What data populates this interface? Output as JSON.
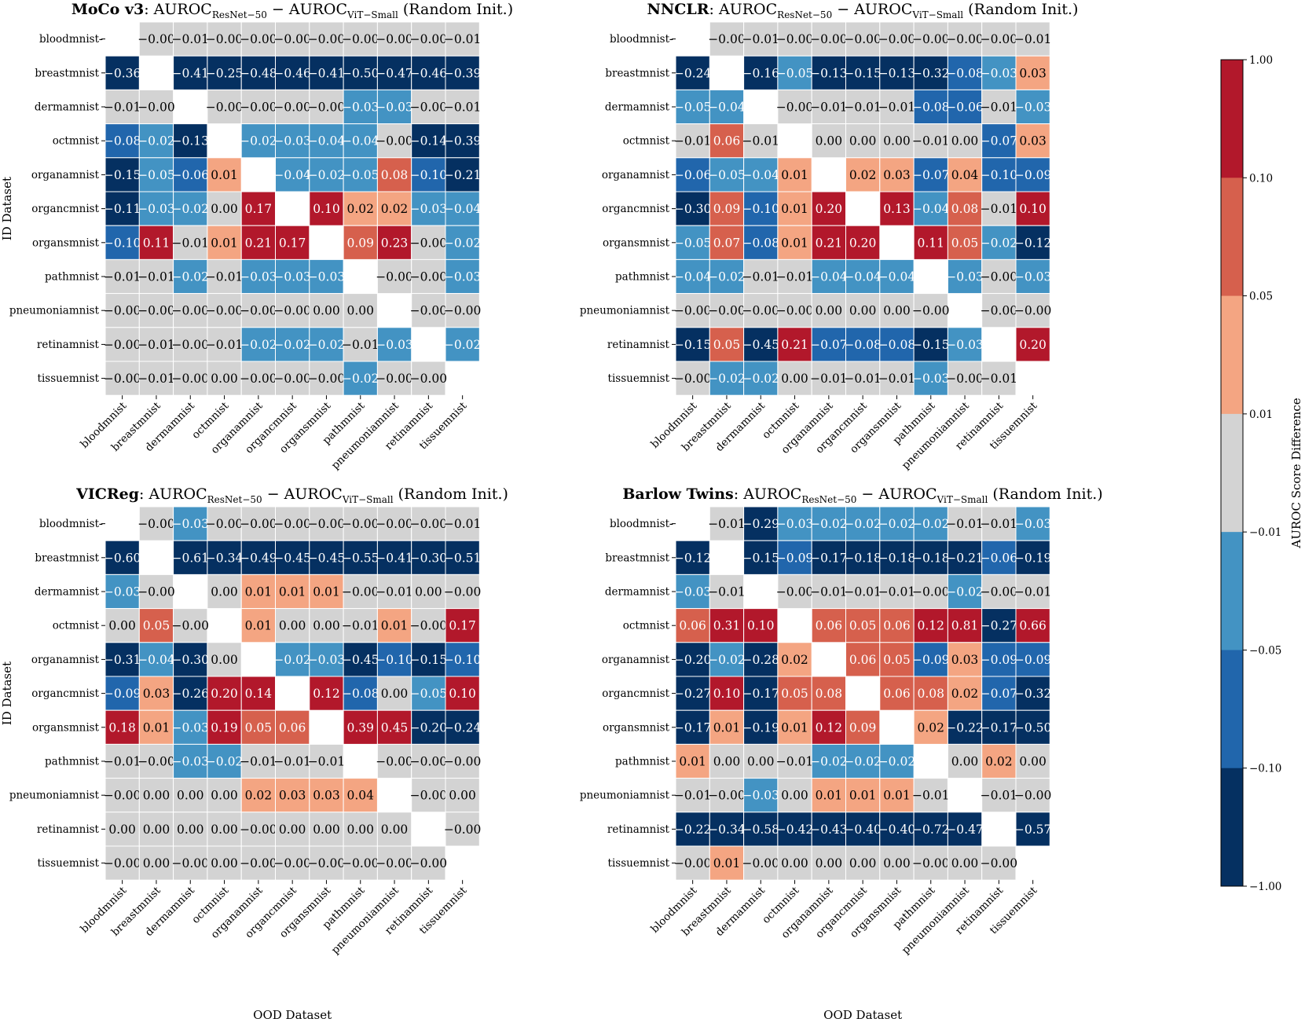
{
  "chart_data": {
    "type": "heatmap",
    "figure_title_prefix_sep": ": ",
    "colorbar": {
      "label": "AUROC Score Difference",
      "ticks": [
        "1.00",
        "0.10",
        "0.05",
        "0.01",
        "−0.01",
        "−0.05",
        "−0.10",
        "−1.00"
      ],
      "boundaries": [
        1.0,
        0.1,
        0.05,
        0.01,
        -0.01,
        -0.05,
        -0.1,
        -1.0
      ],
      "colors": [
        "#b2182b",
        "#d6604d",
        "#f4a582",
        "#d3d3d3",
        "#4393c3",
        "#2166ac",
        "#053061"
      ]
    },
    "x_categories": [
      "bloodmnist",
      "breastmnist",
      "dermamnist",
      "octmnist",
      "organamnist",
      "organcmnist",
      "organsmnist",
      "pathmnist",
      "pneumoniamnist",
      "retinamnist",
      "tissuemnist"
    ],
    "y_categories": [
      "bloodmnist",
      "breastmnist",
      "dermamnist",
      "octmnist",
      "organamnist",
      "organcmnist",
      "organsmnist",
      "pathmnist",
      "pneumoniamnist",
      "retinamnist",
      "tissuemnist"
    ],
    "diagonal_marker": "-",
    "panels": [
      {
        "method": "MoCo v3",
        "title_main": "AUROC",
        "title_sub1": "ResNet−50",
        "title_minus": " − ",
        "title_main2": "AUROC",
        "title_sub2": "ViT−Small",
        "title_suffix": " (Random Init.)",
        "xlabel": "",
        "ylabel": "ID Dataset",
        "values": [
          [
            null,
            "-0.00",
            "-0.01",
            "-0.00",
            "-0.00",
            "-0.00",
            "-0.00",
            "-0.00",
            "-0.00",
            "-0.00",
            "-0.01"
          ],
          [
            "-0.36",
            null,
            "-0.41",
            "-0.25",
            "-0.48",
            "-0.46",
            "-0.41",
            "-0.50",
            "-0.47",
            "-0.46",
            "-0.39"
          ],
          [
            "-0.01",
            "-0.00",
            null,
            "-0.00",
            "-0.00",
            "-0.00",
            "-0.00",
            "-0.03",
            "-0.03",
            "-0.00",
            "-0.01"
          ],
          [
            "-0.08",
            "-0.02",
            "-0.13",
            null,
            "-0.02",
            "-0.03",
            "-0.04",
            "-0.04",
            "-0.00",
            "-0.14",
            "-0.39"
          ],
          [
            "-0.15",
            "-0.05",
            "-0.06",
            "0.01",
            null,
            "-0.04",
            "-0.02",
            "-0.05",
            "0.08",
            "-0.10",
            "-0.21"
          ],
          [
            "-0.11",
            "-0.03",
            "-0.02",
            "0.00",
            "0.17",
            null,
            "0.10",
            "0.02",
            "0.02",
            "-0.03",
            "-0.04"
          ],
          [
            "-0.10",
            "0.11",
            "-0.01",
            "0.01",
            "0.21",
            "0.17",
            null,
            "0.09",
            "0.23",
            "-0.00",
            "-0.02"
          ],
          [
            "-0.01",
            "-0.01",
            "-0.02",
            "-0.01",
            "-0.03",
            "-0.03",
            "-0.03",
            null,
            "-0.00",
            "-0.00",
            "-0.03"
          ],
          [
            "-0.00",
            "-0.00",
            "-0.00",
            "-0.00",
            "-0.00",
            "-0.00",
            "0.00",
            "0.00",
            null,
            "-0.00",
            "-0.00"
          ],
          [
            "-0.00",
            "-0.01",
            "-0.00",
            "-0.01",
            "-0.02",
            "-0.02",
            "-0.02",
            "-0.01",
            "-0.03",
            null,
            "-0.02"
          ],
          [
            "-0.00",
            "-0.01",
            "-0.00",
            "0.00",
            "-0.00",
            "-0.00",
            "-0.00",
            "-0.02",
            "-0.00",
            "-0.00",
            null
          ]
        ]
      },
      {
        "method": "NNCLR",
        "title_main": "AUROC",
        "title_sub1": "ResNet−50",
        "title_minus": " − ",
        "title_main2": "AUROC",
        "title_sub2": "ViT−Small",
        "title_suffix": " (Random Init.)",
        "xlabel": "",
        "ylabel": "",
        "values": [
          [
            null,
            "-0.00",
            "-0.01",
            "-0.00",
            "-0.00",
            "-0.00",
            "-0.00",
            "-0.00",
            "-0.00",
            "-0.00",
            "-0.01"
          ],
          [
            "-0.24",
            null,
            "-0.16",
            "-0.05",
            "-0.13",
            "-0.15",
            "-0.13",
            "-0.32",
            "-0.08",
            "-0.03",
            "0.03"
          ],
          [
            "-0.05",
            "-0.04",
            null,
            "-0.00",
            "-0.01",
            "-0.01",
            "-0.01",
            "-0.08",
            "-0.06",
            "-0.01",
            "-0.03"
          ],
          [
            "-0.01",
            "0.06",
            "-0.01",
            null,
            "0.00",
            "0.00",
            "0.00",
            "-0.01",
            "0.00",
            "-0.07",
            "0.03"
          ],
          [
            "-0.06",
            "-0.05",
            "-0.04",
            "0.01",
            null,
            "0.02",
            "0.03",
            "-0.07",
            "0.04",
            "-0.10",
            "-0.09"
          ],
          [
            "-0.30",
            "0.09",
            "-0.10",
            "0.01",
            "0.20",
            null,
            "0.13",
            "-0.04",
            "0.08",
            "-0.01",
            "0.10"
          ],
          [
            "-0.05",
            "0.07",
            "-0.08",
            "0.01",
            "0.21",
            "0.20",
            null,
            "0.11",
            "0.05",
            "-0.02",
            "-0.12"
          ],
          [
            "-0.04",
            "-0.02",
            "-0.01",
            "-0.01",
            "-0.04",
            "-0.04",
            "-0.04",
            null,
            "-0.03",
            "-0.00",
            "-0.03"
          ],
          [
            "-0.00",
            "-0.00",
            "-0.00",
            "-0.00",
            "0.00",
            "0.00",
            "0.00",
            "-0.00",
            null,
            "-0.00",
            "-0.00"
          ],
          [
            "-0.15",
            "0.05",
            "-0.45",
            "0.21",
            "-0.07",
            "-0.08",
            "-0.08",
            "-0.15",
            "-0.03",
            null,
            "0.20"
          ],
          [
            "-0.00",
            "-0.02",
            "-0.02",
            "0.00",
            "-0.01",
            "-0.01",
            "-0.01",
            "-0.03",
            "-0.00",
            "-0.01",
            null
          ]
        ]
      },
      {
        "method": "VICReg",
        "title_main": "AUROC",
        "title_sub1": "ResNet−50",
        "title_minus": " − ",
        "title_main2": "AUROC",
        "title_sub2": "ViT−Small",
        "title_suffix": " (Random Init.)",
        "xlabel": "OOD Dataset",
        "ylabel": "ID Dataset",
        "values": [
          [
            null,
            "-0.00",
            "-0.03",
            "-0.00",
            "-0.00",
            "-0.00",
            "-0.00",
            "-0.00",
            "-0.00",
            "-0.00",
            "-0.01"
          ],
          [
            "-0.60",
            null,
            "-0.61",
            "-0.34",
            "-0.49",
            "-0.45",
            "-0.45",
            "-0.55",
            "-0.41",
            "-0.30",
            "-0.51"
          ],
          [
            "-0.03",
            "-0.00",
            null,
            "0.00",
            "0.01",
            "0.01",
            "0.01",
            "-0.00",
            "-0.01",
            "0.00",
            "-0.00"
          ],
          [
            "0.00",
            "0.05",
            "-0.00",
            null,
            "0.01",
            "0.00",
            "0.00",
            "-0.01",
            "0.01",
            "-0.00",
            "0.17"
          ],
          [
            "-0.31",
            "-0.04",
            "-0.30",
            "0.00",
            null,
            "-0.02",
            "-0.03",
            "-0.45",
            "-0.10",
            "-0.15",
            "-0.10"
          ],
          [
            "-0.09",
            "0.03",
            "-0.26",
            "0.20",
            "0.14",
            null,
            "0.12",
            "-0.08",
            "0.00",
            "-0.05",
            "0.10"
          ],
          [
            "0.18",
            "0.01",
            "-0.03",
            "0.19",
            "0.05",
            "0.06",
            null,
            "0.39",
            "0.45",
            "-0.20",
            "-0.24"
          ],
          [
            "-0.01",
            "-0.00",
            "-0.03",
            "-0.02",
            "-0.01",
            "-0.01",
            "-0.01",
            null,
            "-0.00",
            "-0.00",
            "-0.00"
          ],
          [
            "-0.00",
            "0.00",
            "0.00",
            "0.00",
            "0.02",
            "0.03",
            "0.03",
            "0.04",
            null,
            "-0.00",
            "0.00"
          ],
          [
            "0.00",
            "0.00",
            "0.00",
            "0.00",
            "-0.00",
            "0.00",
            "0.00",
            "0.00",
            "0.00",
            null,
            "-0.00"
          ],
          [
            "-0.00",
            "0.00",
            "-0.00",
            "0.00",
            "-0.00",
            "-0.00",
            "-0.00",
            "-0.00",
            "-0.00",
            "-0.00",
            null
          ]
        ]
      },
      {
        "method": "Barlow Twins",
        "title_main": "AUROC",
        "title_sub1": "ResNet−50",
        "title_minus": " − ",
        "title_main2": "AUROC",
        "title_sub2": "ViT−Small",
        "title_suffix": " (Random Init.)",
        "xlabel": "OOD Dataset",
        "ylabel": "",
        "values": [
          [
            null,
            "-0.01",
            "-0.29",
            "-0.03",
            "-0.02",
            "-0.02",
            "-0.02",
            "-0.02",
            "-0.01",
            "-0.01",
            "-0.03"
          ],
          [
            "-0.12",
            null,
            "-0.15",
            "-0.09",
            "-0.17",
            "-0.18",
            "-0.18",
            "-0.18",
            "-0.21",
            "-0.06",
            "-0.19"
          ],
          [
            "-0.03",
            "-0.01",
            null,
            "-0.00",
            "-0.01",
            "-0.01",
            "-0.01",
            "-0.00",
            "-0.02",
            "-0.00",
            "-0.01"
          ],
          [
            "0.06",
            "0.31",
            "0.10",
            null,
            "0.06",
            "0.05",
            "0.06",
            "0.12",
            "0.81",
            "-0.27",
            "0.66"
          ],
          [
            "-0.20",
            "-0.02",
            "-0.28",
            "0.02",
            null,
            "0.06",
            "0.05",
            "-0.09",
            "0.03",
            "-0.09",
            "-0.09"
          ],
          [
            "-0.27",
            "0.10",
            "-0.17",
            "0.05",
            "0.08",
            null,
            "0.06",
            "0.08",
            "0.02",
            "-0.07",
            "-0.32"
          ],
          [
            "-0.17",
            "0.01",
            "-0.19",
            "0.01",
            "0.12",
            "0.09",
            null,
            "0.02",
            "-0.22",
            "-0.17",
            "-0.50"
          ],
          [
            "0.01",
            "0.00",
            "0.00",
            "-0.01",
            "-0.02",
            "-0.02",
            "-0.02",
            null,
            "0.00",
            "0.02",
            "0.00"
          ],
          [
            "-0.01",
            "-0.00",
            "-0.03",
            "0.00",
            "0.01",
            "0.01",
            "0.01",
            "-0.01",
            null,
            "-0.01",
            "-0.00"
          ],
          [
            "-0.22",
            "-0.34",
            "-0.58",
            "-0.42",
            "-0.43",
            "-0.40",
            "-0.40",
            "-0.72",
            "-0.47",
            null,
            "-0.57"
          ],
          [
            "-0.00",
            "0.01",
            "-0.00",
            "0.00",
            "0.00",
            "0.00",
            "0.00",
            "-0.00",
            "0.00",
            "-0.00",
            null
          ]
        ]
      }
    ]
  }
}
